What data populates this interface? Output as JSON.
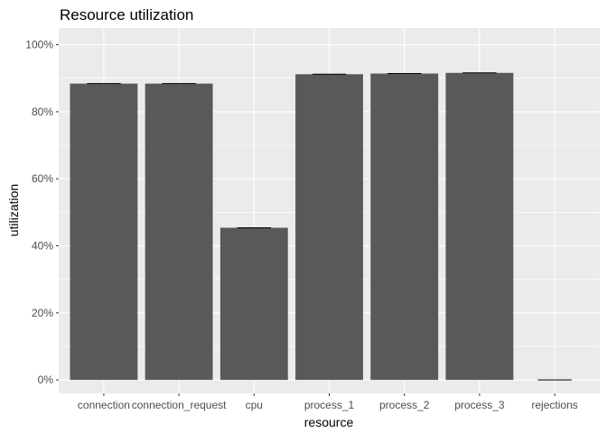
{
  "chart_data": {
    "type": "bar",
    "title": "Resource utilization",
    "xlabel": "resource",
    "ylabel": "utilization",
    "categories": [
      "connection",
      "connection_request",
      "cpu",
      "process_1",
      "process_2",
      "process_3",
      "rejections"
    ],
    "values": [
      0.884,
      0.884,
      0.454,
      0.912,
      0.914,
      0.916,
      0.0
    ],
    "ylim": [
      -0.04,
      1.05
    ],
    "yticks": [
      0,
      0.2,
      0.4,
      0.6,
      0.8,
      1.0
    ],
    "ytick_labels": [
      "0%",
      "20%",
      "40%",
      "60%",
      "80%",
      "100%"
    ],
    "grid": true,
    "legend": "none",
    "colors": {
      "bar": "#595959",
      "panel": "#ebebeb",
      "grid_major": "#ffffff",
      "errorbar": "#000000"
    }
  }
}
